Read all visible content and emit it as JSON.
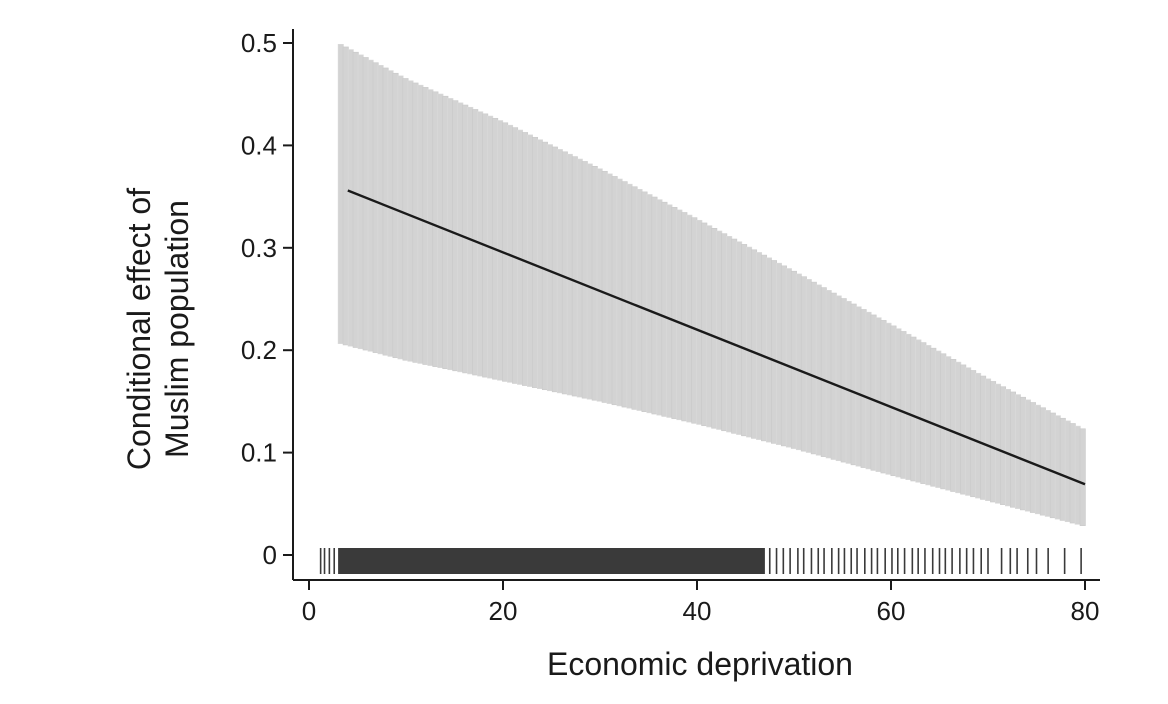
{
  "chart_data": {
    "type": "line",
    "title": "",
    "xlabel": "Economic deprivation",
    "ylabel_lines": [
      "Conditional effect of",
      "Muslim population"
    ],
    "xlim": [
      0,
      80
    ],
    "ylim": [
      0,
      0.5
    ],
    "x_ticks": [
      0,
      20,
      40,
      60,
      80
    ],
    "x_tick_labels": [
      "0",
      "20",
      "40",
      "60",
      "80"
    ],
    "y_ticks": [
      0,
      0.1,
      0.2,
      0.3,
      0.4,
      0.5
    ],
    "y_tick_labels": [
      "0",
      "0.1",
      "0.2",
      "0.3",
      "0.4",
      "0.5"
    ],
    "grid": false,
    "series": [
      {
        "type": "line",
        "x": [
          4,
          80
        ],
        "y": [
          0.356,
          0.069
        ],
        "color": "#1a1a1a"
      }
    ],
    "confidence_band": {
      "x": [
        3,
        10,
        20,
        30,
        40,
        50,
        60,
        70,
        80
      ],
      "upper": [
        0.5,
        0.465,
        0.423,
        0.377,
        0.328,
        0.277,
        0.225,
        0.172,
        0.122
      ],
      "lower": [
        0.207,
        0.19,
        0.17,
        0.15,
        0.128,
        0.104,
        0.078,
        0.053,
        0.028
      ],
      "color": "#d3d3d3"
    },
    "rug": {
      "dense_range": [
        3,
        47
      ],
      "x": [
        1.2,
        1.6,
        2.1,
        2.6,
        47.5,
        48.2,
        48.9,
        49.6,
        50.4,
        51.0,
        51.8,
        52.5,
        53.1,
        53.9,
        54.6,
        55.2,
        55.9,
        56.5,
        57.3,
        58.0,
        58.6,
        59.4,
        60.1,
        60.7,
        61.4,
        62.2,
        62.8,
        63.5,
        64.3,
        65.0,
        65.6,
        66.3,
        67.1,
        67.8,
        68.5,
        69.3,
        70.0,
        71.4,
        72.3,
        73.0,
        74.1,
        75.0,
        76.2,
        77.9,
        79.6
      ],
      "color": "#3a3a3a"
    }
  }
}
